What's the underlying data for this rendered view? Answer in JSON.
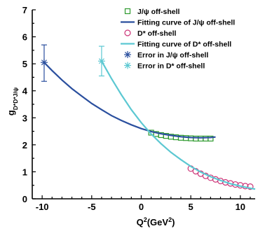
{
  "chart_data": {
    "type": "scatter",
    "xlabel": "Q²(GeV²)",
    "ylabel": "g_{D*D*J/ψ}",
    "xlim": [
      -11,
      11.5
    ],
    "ylim": [
      0,
      7
    ],
    "xticks": [
      -10,
      -5,
      0,
      5,
      10
    ],
    "yticks": [
      0,
      1,
      2,
      3,
      4,
      5,
      6,
      7
    ],
    "grid": false,
    "legend_position": "top-right",
    "series": [
      {
        "name": "J/ψ off-shell",
        "kind": "points",
        "marker": "square-open",
        "color": "#2e9a2e",
        "x": [
          1,
          1.5,
          2,
          2.5,
          3,
          3.5,
          4,
          4.5,
          5,
          5.5,
          6,
          6.5,
          7
        ],
        "y": [
          2.45,
          2.4,
          2.36,
          2.33,
          2.3,
          2.28,
          2.26,
          2.25,
          2.24,
          2.23,
          2.23,
          2.23,
          2.23
        ]
      },
      {
        "name": "Fitting curve of J/ψ off-shell",
        "kind": "line",
        "color": "#2a4f9e",
        "x": [
          -9.8,
          -9,
          -8,
          -7,
          -6,
          -5,
          -4,
          -3,
          -2,
          -1,
          0,
          1,
          2,
          3,
          4,
          5,
          6,
          7,
          7.5
        ],
        "y": [
          5.05,
          4.75,
          4.4,
          4.08,
          3.8,
          3.53,
          3.3,
          3.08,
          2.9,
          2.74,
          2.6,
          2.49,
          2.41,
          2.35,
          2.3,
          2.27,
          2.26,
          2.27,
          2.29
        ]
      },
      {
        "name": "D* off-shell",
        "kind": "points",
        "marker": "circle-open",
        "color": "#cc3377",
        "x": [
          5,
          5.5,
          6,
          6.5,
          7,
          7.5,
          8,
          8.5,
          9,
          9.5,
          10,
          10.5,
          11
        ],
        "y": [
          1.12,
          1.02,
          0.93,
          0.85,
          0.78,
          0.72,
          0.66,
          0.61,
          0.57,
          0.53,
          0.5,
          0.47,
          0.45
        ]
      },
      {
        "name": "Fitting curve of D* off-shell",
        "kind": "line",
        "color": "#5cc8d2",
        "x": [
          -4,
          -3,
          -2,
          -1,
          0,
          1,
          2,
          3,
          4,
          5,
          6,
          7,
          8,
          9,
          10,
          11,
          11.5
        ],
        "y": [
          5.1,
          4.45,
          3.85,
          3.3,
          2.82,
          2.4,
          2.04,
          1.72,
          1.45,
          1.2,
          0.99,
          0.82,
          0.68,
          0.56,
          0.47,
          0.39,
          0.36
        ]
      },
      {
        "name": "Error in J/ψ off-shell",
        "kind": "errorbar",
        "marker": "asterisk",
        "color": "#2a4f9e",
        "x": [
          -9.8
        ],
        "y": [
          5.05
        ],
        "yerr_low": [
          0.7
        ],
        "yerr_high": [
          0.65
        ]
      },
      {
        "name": "Error in D* off-shell",
        "kind": "errorbar",
        "marker": "asterisk",
        "color": "#5cc8d2",
        "x": [
          -4
        ],
        "y": [
          5.1
        ],
        "yerr_low": [
          0.55
        ],
        "yerr_high": [
          0.55
        ]
      }
    ]
  }
}
